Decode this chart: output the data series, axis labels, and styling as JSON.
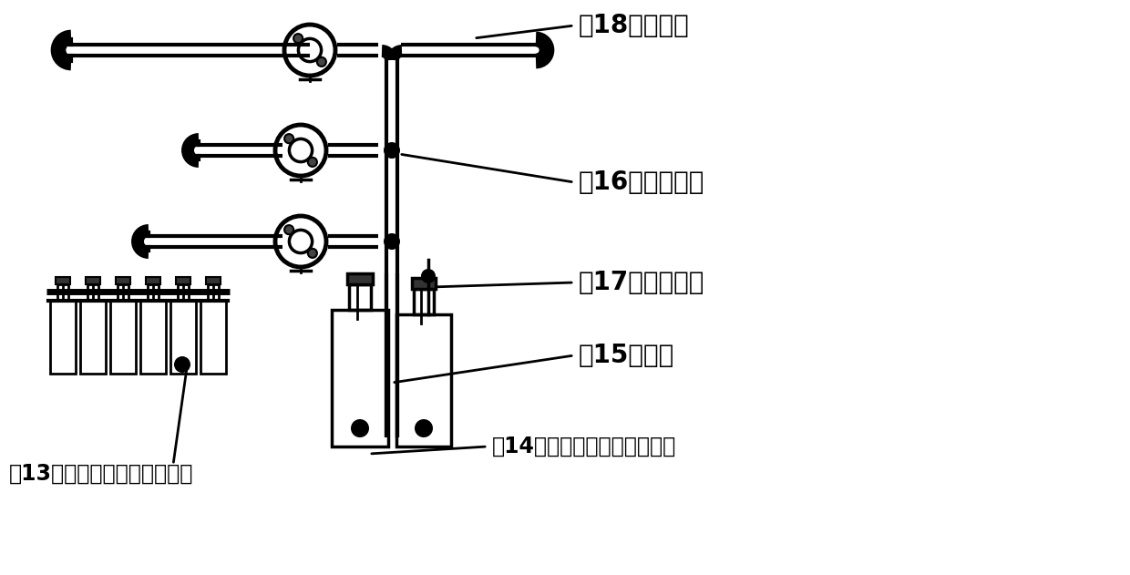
{
  "bg_color": "#ffffff",
  "line_color": "#000000",
  "labels": {
    "18": "（18）蚊动泵",
    "16": "（16）补料导管",
    "17": "（17）通气导管",
    "15": "（15）水瓶",
    "14": "（14）微量元素浓缩补料单元",
    "13": "（13）连续碳氮浓缩补料单元"
  },
  "font_size_large": 20,
  "font_size_medium": 17
}
